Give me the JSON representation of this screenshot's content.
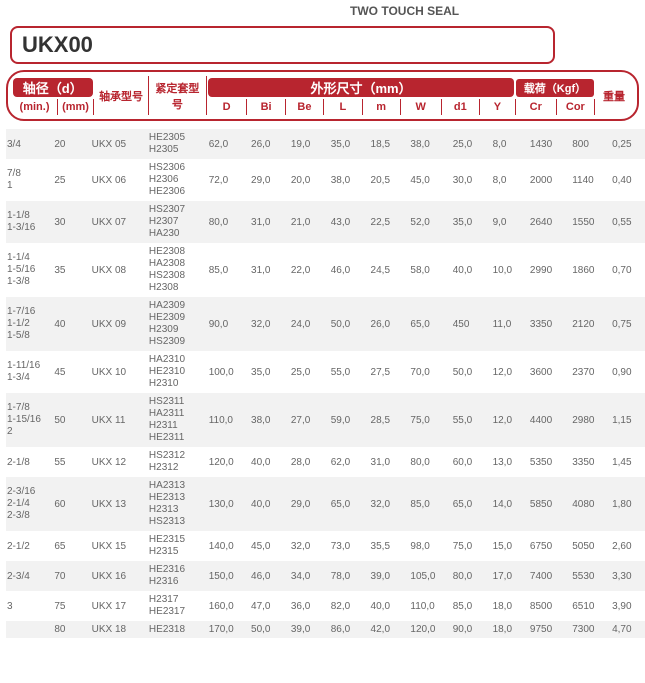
{
  "top": {
    "seal_label": "TWO TOUCH SEAL"
  },
  "title": "UKX00",
  "header": {
    "shaft_dia": "轴径（d）",
    "min": "(min.)",
    "mm": "(mm)",
    "bearing_no": "轴承型号",
    "sleeve_no": "紧定套型号",
    "dims": "外形尺寸（mm）",
    "load": "载荷（Kgf）",
    "weight": "重量",
    "D": "D",
    "Bi": "Bi",
    "Be": "Be",
    "L": "L",
    "m": "m",
    "W": "W",
    "d1": "d1",
    "Y": "Y",
    "Cr": "Cr",
    "Cor": "Cor"
  },
  "colwidths": [
    "38",
    "30",
    "46",
    "48",
    "34",
    "32",
    "32",
    "32",
    "32",
    "34",
    "32",
    "30",
    "34",
    "32",
    "32"
  ],
  "rows": [
    {
      "min": "3/4",
      "mm": "20",
      "brg": "UKX 05",
      "slv": "HE2305\nH2305",
      "D": "62,0",
      "Bi": "26,0",
      "Be": "19,0",
      "L": "35,0",
      "m": "18,5",
      "W": "38,0",
      "d1": "25,0",
      "Y": "8,0",
      "Cr": "1430",
      "Cor": "800",
      "wt": "0,25"
    },
    {
      "min": "7/8\n1",
      "mm": "25",
      "brg": "UKX 06",
      "slv": "HS2306\nH2306\nHE2306",
      "D": "72,0",
      "Bi": "29,0",
      "Be": "20,0",
      "L": "38,0",
      "m": "20,5",
      "W": "45,0",
      "d1": "30,0",
      "Y": "8,0",
      "Cr": "2000",
      "Cor": "1140",
      "wt": "0,40"
    },
    {
      "min": "1-1/8\n1-3/16",
      "mm": "30",
      "brg": "UKX 07",
      "slv": "HS2307\nH2307\nHA230",
      "D": "80,0",
      "Bi": "31,0",
      "Be": "21,0",
      "L": "43,0",
      "m": "22,5",
      "W": "52,0",
      "d1": "35,0",
      "Y": "9,0",
      "Cr": "2640",
      "Cor": "1550",
      "wt": "0,55"
    },
    {
      "min": "1-1/4\n1-5/16\n1-3/8",
      "mm": "35",
      "brg": "UKX 08",
      "slv": "HE2308\nHA2308\nHS2308\nH2308",
      "D": "85,0",
      "Bi": "31,0",
      "Be": "22,0",
      "L": "46,0",
      "m": "24,5",
      "W": "58,0",
      "d1": "40,0",
      "Y": "10,0",
      "Cr": "2990",
      "Cor": "1860",
      "wt": "0,70"
    },
    {
      "min": "1-7/16\n1-1/2\n1-5/8",
      "mm": "40",
      "brg": "UKX 09",
      "slv": "HA2309\nHE2309\nH2309\nHS2309",
      "D": "90,0",
      "Bi": "32,0",
      "Be": "24,0",
      "L": "50,0",
      "m": "26,0",
      "W": "65,0",
      "d1": "450",
      "Y": "11,0",
      "Cr": "3350",
      "Cor": "2120",
      "wt": "0,75"
    },
    {
      "min": "1-11/16\n1-3/4",
      "mm": "45",
      "brg": "UKX 10",
      "slv": "HA2310\nHE2310\nH2310",
      "D": "100,0",
      "Bi": "35,0",
      "Be": "25,0",
      "L": "55,0",
      "m": "27,5",
      "W": "70,0",
      "d1": "50,0",
      "Y": "12,0",
      "Cr": "3600",
      "Cor": "2370",
      "wt": "0,90"
    },
    {
      "min": "1-7/8\n1-15/16\n2",
      "mm": "50",
      "brg": "UKX 11",
      "slv": "HS2311\nHA2311\nH2311\nHE2311",
      "D": "110,0",
      "Bi": "38,0",
      "Be": "27,0",
      "L": "59,0",
      "m": "28,5",
      "W": "75,0",
      "d1": "55,0",
      "Y": "12,0",
      "Cr": "4400",
      "Cor": "2980",
      "wt": "1,15"
    },
    {
      "min": "2-1/8",
      "mm": "55",
      "brg": "UKX 12",
      "slv": "HS2312\nH2312",
      "D": "120,0",
      "Bi": "40,0",
      "Be": "28,0",
      "L": "62,0",
      "m": "31,0",
      "W": "80,0",
      "d1": "60,0",
      "Y": "13,0",
      "Cr": "5350",
      "Cor": "3350",
      "wt": "1,45"
    },
    {
      "min": "2-3/16\n2-1/4\n2-3/8",
      "mm": "60",
      "brg": "UKX 13",
      "slv": "HA2313\nHE2313\nH2313\nHS2313",
      "D": "130,0",
      "Bi": "40,0",
      "Be": "29,0",
      "L": "65,0",
      "m": "32,0",
      "W": "85,0",
      "d1": "65,0",
      "Y": "14,0",
      "Cr": "5850",
      "Cor": "4080",
      "wt": "1,80"
    },
    {
      "min": "2-1/2",
      "mm": "65",
      "brg": "UKX 15",
      "slv": "HE2315\nH2315",
      "D": "140,0",
      "Bi": "45,0",
      "Be": "32,0",
      "L": "73,0",
      "m": "35,5",
      "W": "98,0",
      "d1": "75,0",
      "Y": "15,0",
      "Cr": "6750",
      "Cor": "5050",
      "wt": "2,60"
    },
    {
      "min": "2-3/4",
      "mm": "70",
      "brg": "UKX 16",
      "slv": "HE2316\nH2316",
      "D": "150,0",
      "Bi": "46,0",
      "Be": "34,0",
      "L": "78,0",
      "m": "39,0",
      "W": "105,0",
      "d1": "80,0",
      "Y": "17,0",
      "Cr": "7400",
      "Cor": "5530",
      "wt": "3,30"
    },
    {
      "min": "3",
      "mm": "75",
      "brg": "UKX 17",
      "slv": "H2317\nHE2317",
      "D": "160,0",
      "Bi": "47,0",
      "Be": "36,0",
      "L": "82,0",
      "m": "40,0",
      "W": "110,0",
      "d1": "85,0",
      "Y": "18,0",
      "Cr": "8500",
      "Cor": "6510",
      "wt": "3,90"
    },
    {
      "min": "",
      "mm": "80",
      "brg": "UKX 18",
      "slv": "HE2318",
      "D": "170,0",
      "Bi": "50,0",
      "Be": "39,0",
      "L": "86,0",
      "m": "42,0",
      "W": "120,0",
      "d1": "90,0",
      "Y": "18,0",
      "Cr": "9750",
      "Cor": "7300",
      "wt": "4,70"
    }
  ]
}
